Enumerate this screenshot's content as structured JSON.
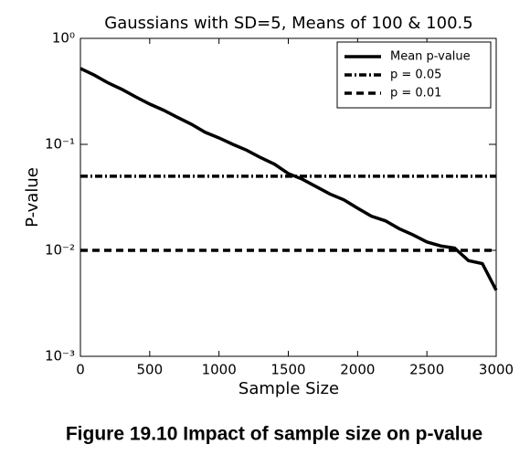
{
  "chart_data": {
    "type": "line",
    "title": "Gaussians with SD=5, Means of 100 & 100.5",
    "xlabel": "Sample Size",
    "ylabel": "P-value",
    "caption": "Figure 19.10 Impact of sample size on p-value",
    "x": [
      0,
      100,
      200,
      300,
      400,
      500,
      600,
      700,
      800,
      900,
      1000,
      1100,
      1200,
      1300,
      1400,
      1500,
      1600,
      1700,
      1800,
      1900,
      2000,
      2100,
      2200,
      2300,
      2400,
      2500,
      2600,
      2700,
      2800,
      2900,
      3000
    ],
    "series": [
      {
        "name": "Mean p-value",
        "color": "#000000",
        "style": "solid",
        "values": [
          0.52,
          0.45,
          0.38,
          0.33,
          0.28,
          0.24,
          0.21,
          0.18,
          0.155,
          0.13,
          0.115,
          0.1,
          0.088,
          0.075,
          0.065,
          0.053,
          0.047,
          0.04,
          0.034,
          0.03,
          0.025,
          0.021,
          0.019,
          0.016,
          0.014,
          0.012,
          0.011,
          0.0105,
          0.008,
          0.0075,
          0.0042
        ]
      }
    ],
    "hlines": [
      {
        "name": "p = 0.05",
        "value": 0.05,
        "color": "#000000",
        "style": "dashdot"
      },
      {
        "name": "p = 0.01",
        "value": 0.01,
        "color": "#000000",
        "style": "dashed"
      }
    ],
    "xlim": [
      0,
      3000
    ],
    "xticks": [
      0,
      500,
      1000,
      1500,
      2000,
      2500,
      3000
    ],
    "ylim": [
      0.001,
      1
    ],
    "yscale": "log",
    "yticks": [
      {
        "value": 0.001,
        "label": "10⁻³"
      },
      {
        "value": 0.01,
        "label": "10⁻²"
      },
      {
        "value": 0.1,
        "label": "10⁻¹"
      },
      {
        "value": 1,
        "label": "10⁰"
      }
    ],
    "legend": "upper right"
  }
}
